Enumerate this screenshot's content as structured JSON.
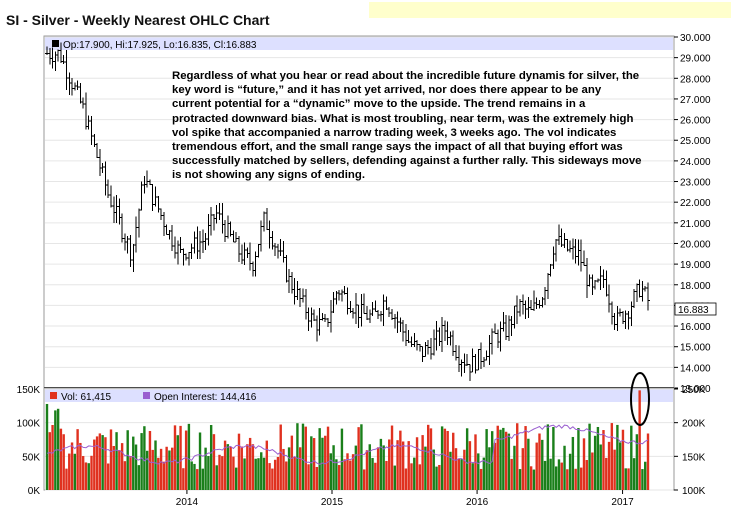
{
  "title": "SI - Silver - Weekly Nearest OHLC Chart",
  "price_panel": {
    "legend_text": "Op:17.900, Hi:17.925, Lo:16.835, Cl:16.883",
    "last_price_label": "16.883",
    "y_tick_labels": [
      "30.000",
      "29.000",
      "28.000",
      "27.000",
      "26.000",
      "25.000",
      "24.000",
      "23.000",
      "22.000",
      "21.000",
      "20.000",
      "19.000",
      "18.000",
      "17.000",
      "16.000",
      "15.000",
      "14.000",
      "13.000"
    ]
  },
  "annotation_text": "Regardless of what you hear or read about the incredible future dynamis for silver, the key word is “future,” and it has not yet arrived, nor does there appear to be any current potential for a “dynamic” move to the upside.  The trend remains in a protracted downward bias.  What is most troubling, near term, was the extremely high vol spike that accompanied a narrow trading week, 3 weeks ago.  The vol indicates tremendous effort, and the small range says the impact of all that buying effort was successfully matched by sellers, defending against a further rally.  This sideways move is not showing any signs of ending.",
  "volume_panel": {
    "vol_legend": "Vol: 61,415",
    "oi_legend": "Open Interest: 144,416",
    "left_tick_labels": [
      "150K",
      "100K",
      "50K",
      "0K"
    ],
    "right_tick_labels": [
      "250K",
      "200K",
      "150K",
      "100K"
    ]
  },
  "x_tick_labels": [
    "2014",
    "2015",
    "2016",
    "2017"
  ],
  "colors": {
    "up_volume": "#1a7f1a",
    "down_volume": "#e0311f",
    "open_interest": "#9a5fd0",
    "legend_band": "#dde0ff",
    "annotation_circle": "#000000"
  },
  "chart_data": {
    "type": "ohlc",
    "title": "SI - Silver - Weekly Nearest OHLC Chart",
    "price_ylim": [
      13.0,
      30.0
    ],
    "volume_ylim_left": [
      0,
      150000
    ],
    "open_interest_ylim_right": [
      100000,
      250000
    ],
    "x_ticks": [
      "2014",
      "2015",
      "2016",
      "2017"
    ],
    "anchor_closes": [
      [
        "2013-02",
        29.2
      ],
      [
        "2013-04",
        26.5
      ],
      [
        "2013-06",
        22.5
      ],
      [
        "2013-08",
        19.5
      ],
      [
        "2013-09",
        23.2
      ],
      [
        "2013-11",
        20.6
      ],
      [
        "2013-12",
        19.5
      ],
      [
        "2014-02",
        20.2
      ],
      [
        "2014-03",
        21.5
      ],
      [
        "2014-05",
        19.5
      ],
      [
        "2014-06",
        19.0
      ],
      [
        "2014-07",
        21.2
      ],
      [
        "2014-08",
        19.8
      ],
      [
        "2014-09",
        18.2
      ],
      [
        "2014-10",
        17.2
      ],
      [
        "2014-11",
        16.2
      ],
      [
        "2014-12",
        16.0
      ],
      [
        "2015-01",
        17.8
      ],
      [
        "2015-03",
        16.6
      ],
      [
        "2015-04",
        16.4
      ],
      [
        "2015-05",
        17.3
      ],
      [
        "2015-07",
        15.2
      ],
      [
        "2015-08",
        14.7
      ],
      [
        "2015-09",
        15.2
      ],
      [
        "2015-10",
        15.9
      ],
      [
        "2015-11",
        14.6
      ],
      [
        "2015-12",
        14.1
      ],
      [
        "2016-01",
        14.6
      ],
      [
        "2016-02",
        15.5
      ],
      [
        "2016-03",
        15.8
      ],
      [
        "2016-04",
        17.0
      ],
      [
        "2016-05",
        16.6
      ],
      [
        "2016-06",
        17.6
      ],
      [
        "2016-07",
        20.2
      ],
      [
        "2016-08",
        19.7
      ],
      [
        "2016-09",
        19.4
      ],
      [
        "2016-10",
        17.6
      ],
      [
        "2016-11",
        18.3
      ],
      [
        "2016-12",
        16.2
      ],
      [
        "2017-01",
        16.8
      ],
      [
        "2017-02",
        17.9
      ],
      [
        "2017-03",
        16.9
      ]
    ],
    "annotation": "high-volume spike week circled in early 2017"
  }
}
